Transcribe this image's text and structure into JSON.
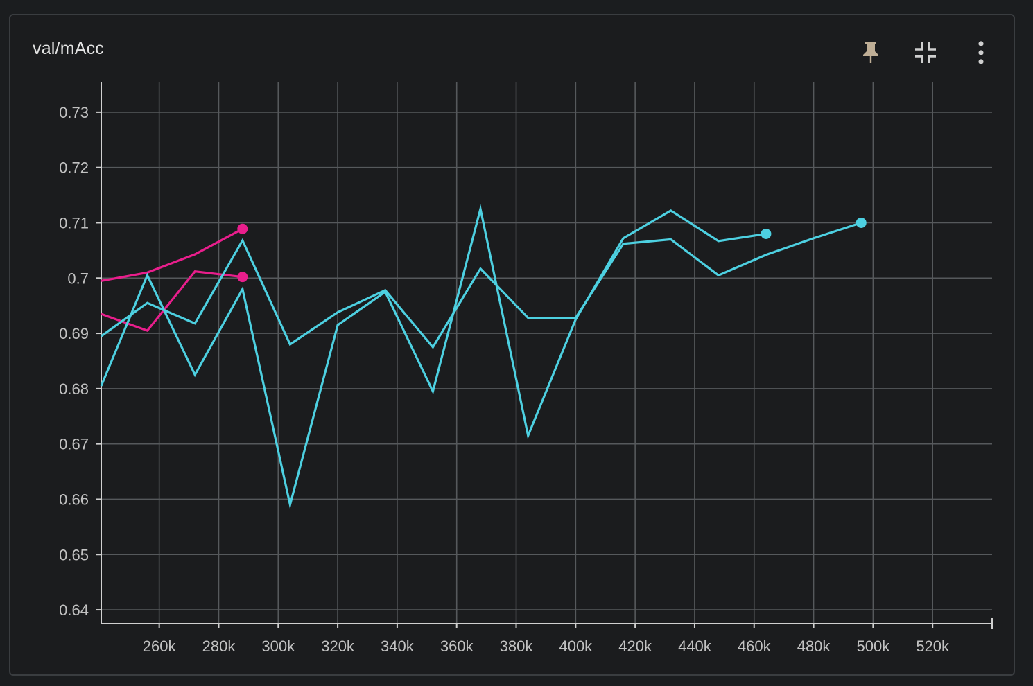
{
  "card": {
    "title": "val/mAcc"
  },
  "toolbar": {
    "pin_icon": "pin-icon",
    "fit_icon": "fit-domain-icon",
    "more_icon": "more-vert-icon"
  },
  "chart_data": {
    "type": "line",
    "title": "val/mAcc",
    "xlabel": "",
    "ylabel": "",
    "xlim": [
      240500,
      540000
    ],
    "ylim": [
      0.6375,
      0.7355
    ],
    "x_ticks": [
      260000,
      280000,
      300000,
      320000,
      340000,
      360000,
      380000,
      400000,
      420000,
      440000,
      460000,
      480000,
      500000,
      520000
    ],
    "x_tick_labels": [
      "260k",
      "280k",
      "300k",
      "320k",
      "340k",
      "360k",
      "380k",
      "400k",
      "420k",
      "440k",
      "460k",
      "480k",
      "500k",
      "520k"
    ],
    "y_ticks": [
      0.64,
      0.65,
      0.66,
      0.67,
      0.68,
      0.69,
      0.7,
      0.71,
      0.72,
      0.73
    ],
    "y_tick_labels": [
      "0.64",
      "0.65",
      "0.66",
      "0.67",
      "0.68",
      "0.69",
      "0.7",
      "0.71",
      "0.72",
      "0.73"
    ],
    "grid": true,
    "series": [
      {
        "color": "#e91e8c",
        "x": [
          240500,
          256000,
          272000,
          288000
        ],
        "values": [
          0.6995,
          0.701,
          0.7043,
          0.7089
        ]
      },
      {
        "color": "#e91e8c",
        "x": [
          240500,
          256000,
          272000,
          288000
        ],
        "values": [
          0.6935,
          0.6905,
          0.7012,
          0.7002
        ]
      },
      {
        "color": "#4dd0e1",
        "x": [
          240500,
          256000,
          272000,
          288000,
          304000,
          320000,
          336000,
          352000,
          368000,
          384000,
          400000,
          416000,
          432000,
          448000,
          464000
        ],
        "values": [
          0.6805,
          0.7005,
          0.6825,
          0.698,
          0.659,
          0.6915,
          0.6975,
          0.6795,
          0.7125,
          0.6715,
          0.6925,
          0.7072,
          0.7122,
          0.7067,
          0.708
        ]
      },
      {
        "color": "#4dd0e1",
        "x": [
          240500,
          256000,
          272000,
          288000,
          304000,
          320000,
          336000,
          352000,
          368000,
          384000,
          400000,
          416000,
          432000,
          448000,
          464000,
          480000,
          496000
        ],
        "values": [
          0.6895,
          0.6955,
          0.6918,
          0.7068,
          0.688,
          0.6938,
          0.6978,
          0.6875,
          0.7017,
          0.6928,
          0.6928,
          0.7062,
          0.707,
          0.7005,
          0.7042,
          0.7072,
          0.71
        ]
      }
    ]
  }
}
